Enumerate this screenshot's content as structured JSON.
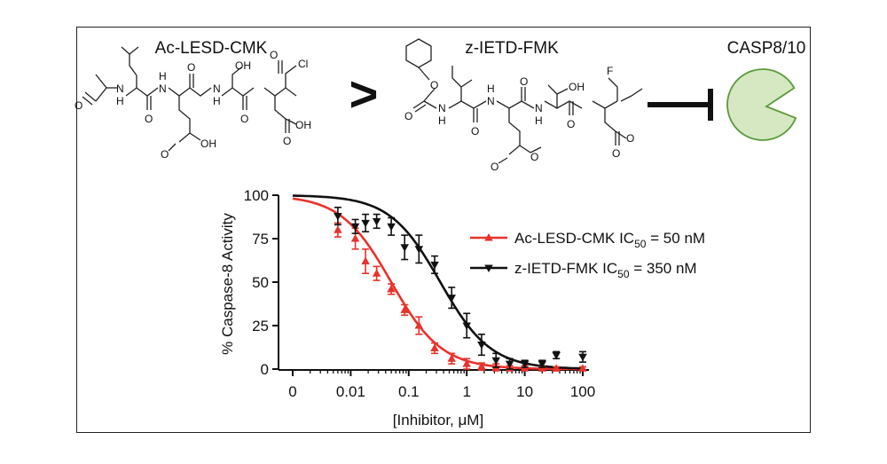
{
  "compound_a": {
    "name": "Ac-LESD-CMK",
    "atoms": {
      "nh1": "N",
      "h1": "H",
      "nh2": "N",
      "h2": "H",
      "nh3": "N",
      "h3": "H",
      "oh_ser": "OH",
      "cl": "Cl",
      "o1": "O",
      "o2": "O",
      "o3": "O",
      "o4": "O",
      "o5": "O",
      "o_acid1": "O",
      "oh_acid1": "OH",
      "o_acid2": "O",
      "oh_acid2": "OH"
    }
  },
  "comparator": ">",
  "compound_b": {
    "name": "z-IETD-FMK",
    "atoms": {
      "o_carb": "O",
      "o_carb2": "O",
      "nh1": "N",
      "h1": "H",
      "nh2": "N",
      "h2": "H",
      "nh3": "N",
      "h3": "H",
      "oh_thr": "OH",
      "f": "F",
      "o1": "O",
      "o2": "O",
      "o3": "O",
      "o_est1": "O",
      "o_est1b": "O",
      "o_est2": "O",
      "o_est2b": "O"
    }
  },
  "target": {
    "name": "CASP8/10",
    "fill": "#d5e8c2",
    "stroke": "#5a9a3c"
  },
  "colors": {
    "red": "#e8322b",
    "black": "#111111"
  },
  "chart_data": {
    "type": "scatter",
    "ylabel": "% Caspase-8 Activity",
    "xlabel": "[Inhibitor, μM]",
    "x_scale": "log",
    "x_ticks": [
      "0",
      "0.01",
      "0.1",
      "1",
      "10",
      "100"
    ],
    "y_ticks": [
      "0",
      "25",
      "50",
      "75",
      "100"
    ],
    "ylim": [
      0,
      100
    ],
    "legend_position": "right",
    "series": [
      {
        "name": "Ac-LESD-CMK IC50 = 50 nM",
        "legend_text": "Ac-LESD-CMK IC",
        "legend_sub": "50",
        "legend_tail": " = 50 nM",
        "marker": "triangle-up",
        "color": "#e8322b",
        "x": [
          0.006,
          0.012,
          0.018,
          0.028,
          0.05,
          0.085,
          0.15,
          0.28,
          0.55,
          1.0,
          1.8,
          3.2,
          5.5,
          10,
          20,
          35,
          100
        ],
        "y": [
          80,
          75,
          62,
          55,
          46,
          34,
          25,
          12,
          6,
          3,
          1.5,
          1,
          0.5,
          0.5,
          0.3,
          0.3,
          0.3
        ],
        "err": [
          4,
          6,
          7,
          4,
          3,
          3,
          5,
          3,
          3,
          3,
          2,
          2,
          1.5,
          1.5,
          1,
          1,
          1
        ]
      },
      {
        "name": "z-IETD-FMK IC50 = 350 nM",
        "legend_text": "z-IETD-FMK IC",
        "legend_sub": "50",
        "legend_tail": " = 350 nM",
        "marker": "triangle-down",
        "color": "#111111",
        "x": [
          0.006,
          0.012,
          0.018,
          0.028,
          0.05,
          0.085,
          0.15,
          0.28,
          0.55,
          1.0,
          1.8,
          3.2,
          5.5,
          10,
          20,
          35,
          100
        ],
        "y": [
          88,
          82,
          84,
          85,
          82,
          70,
          69,
          60,
          41,
          25,
          14,
          5,
          3,
          3,
          3,
          8,
          7
        ],
        "err": [
          5,
          4,
          5,
          4,
          5,
          7,
          8,
          5,
          6,
          7,
          6,
          4,
          3,
          2,
          2,
          2,
          3
        ]
      }
    ],
    "fits": [
      {
        "series": "Ac-LESD-CMK",
        "ic50": 0.05,
        "top": 100,
        "bottom": 0,
        "hill": 1,
        "color": "#e8322b"
      },
      {
        "series": "z-IETD-FMK",
        "ic50": 0.35,
        "top": 100,
        "bottom": 0,
        "hill": 1,
        "color": "#111111"
      }
    ]
  }
}
